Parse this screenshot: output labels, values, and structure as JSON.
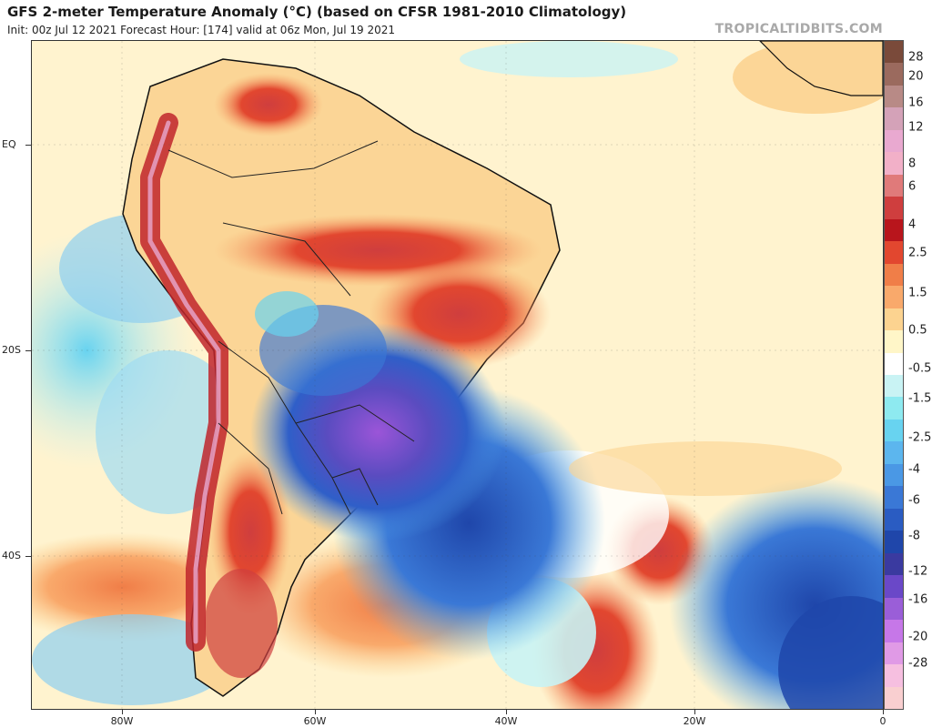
{
  "header": {
    "title": "GFS 2-meter Temperature Anomaly (°C) (based on CFSR 1981-2010 Climatology)",
    "subtitle": "Init: 00z Jul 12 2021   Forecast Hour: [174]   valid at 06z Mon, Jul 19 2021",
    "brand": "TROPICALTIDBITS.COM"
  },
  "map": {
    "latitude_labels": [
      "EQ",
      "20S",
      "40S"
    ],
    "longitude_labels": [
      "80W",
      "60W",
      "40W",
      "20W",
      "0"
    ]
  },
  "legend": {
    "labels": [
      "28",
      "20",
      "16",
      "12",
      "8",
      "6",
      "4",
      "2.5",
      "1.5",
      "0.5",
      "-0.5",
      "-1.5",
      "-2.5",
      "-4",
      "-6",
      "-8",
      "-12",
      "-16",
      "-20",
      "-28"
    ],
    "colors": [
      "#7a4a3a",
      "#9b6a5e",
      "#b88a86",
      "#d4a2b8",
      "#e9a9d0",
      "#f2b0c8",
      "#e07a7a",
      "#cf3e3e",
      "#b8151c",
      "#e2472f",
      "#f07e48",
      "#f9a96b",
      "#fcd390",
      "#fff6c8",
      "#ffffff",
      "#c9f3f4",
      "#8eeaf0",
      "#68d3f0",
      "#5cb6ee",
      "#4a98e5",
      "#3a78d6",
      "#2a5cc2",
      "#1f46aa",
      "#3a3aa0",
      "#6a48c8",
      "#9a5ed8",
      "#c677e8",
      "#e09ae6",
      "#f6bfe0",
      "#f9cfd0"
    ]
  }
}
